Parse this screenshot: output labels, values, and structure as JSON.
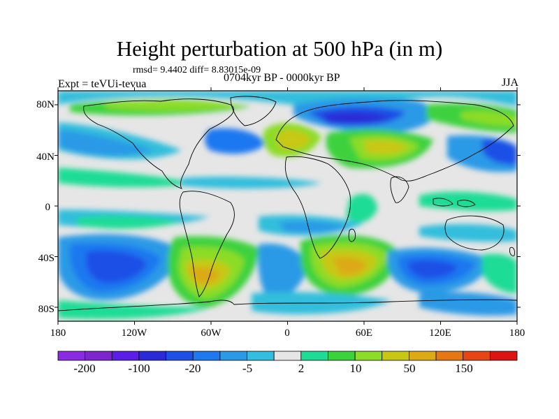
{
  "title": "Height perturbation at 500 hPa (in m)",
  "stats": "rmsd= 9.4402 diff= 8.83015e-09",
  "experiment": "Expt = teVUi-tevua",
  "period": "0704kyr BP - 0000kyr BP",
  "season": "JJA",
  "map": {
    "lat_ticks": [
      "80N",
      "40N",
      "0",
      "40S",
      "80S"
    ],
    "lon_ticks": [
      "180",
      "120W",
      "60W",
      "0",
      "60E",
      "120E",
      "180"
    ]
  },
  "colorbar": {
    "colors": [
      "#8a2be2",
      "#7d26cd",
      "#5a1ee6",
      "#2a2ad6",
      "#1e50e6",
      "#1e78f0",
      "#2a9ae6",
      "#32bedc",
      "#e6e6e6",
      "#1edc96",
      "#3cd23c",
      "#8cdc28",
      "#c8c814",
      "#dcaa14",
      "#e67814",
      "#e64614",
      "#dc1414"
    ],
    "labels": [
      "-200",
      "-100",
      "-20",
      "-5",
      "2",
      "10",
      "50",
      "150"
    ]
  }
}
